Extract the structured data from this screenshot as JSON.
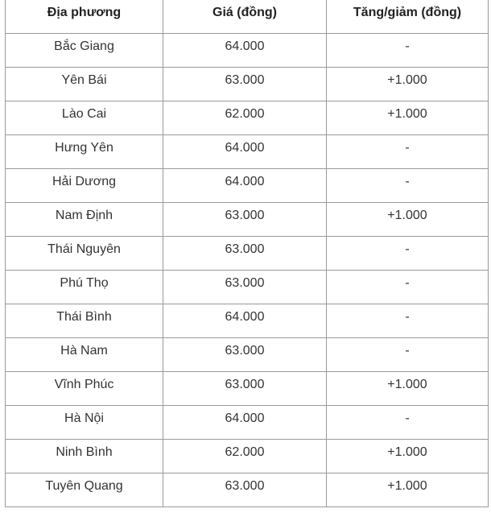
{
  "table": {
    "headers": [
      "Địa phương",
      "Giá (đồng)",
      "Tăng/giảm (đồng)"
    ],
    "rows": [
      [
        "Bắc Giang",
        "64.000",
        "-"
      ],
      [
        "Yên Bái",
        "63.000",
        "+1.000"
      ],
      [
        "Lào Cai",
        "62.000",
        "+1.000"
      ],
      [
        "Hưng Yên",
        "64.000",
        "-"
      ],
      [
        "Hải Dương",
        "64.000",
        "-"
      ],
      [
        "Nam Định",
        "63.000",
        "+1.000"
      ],
      [
        "Thái Nguyên",
        "63.000",
        "-"
      ],
      [
        "Phú Thọ",
        "63.000",
        "-"
      ],
      [
        "Thái Bình",
        "64.000",
        "-"
      ],
      [
        "Hà Nam",
        "63.000",
        "-"
      ],
      [
        "Vĩnh Phúc",
        "63.000",
        "+1.000"
      ],
      [
        "Hà Nội",
        "64.000",
        "-"
      ],
      [
        "Ninh Bình",
        "62.000",
        "+1.000"
      ],
      [
        "Tuyên Quang",
        "63.000",
        "+1.000"
      ]
    ]
  }
}
